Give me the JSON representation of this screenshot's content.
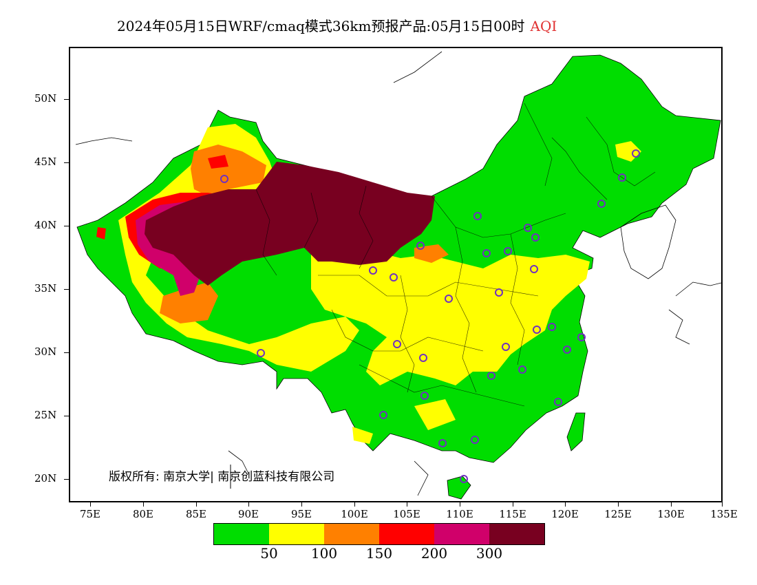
{
  "title": {
    "text": "2024年05月15日WRF/cmaq模式36km预报产品:05月15日00时",
    "variable": "AQI",
    "variable_color": "#e03030"
  },
  "axes": {
    "lat_labels": [
      "50N",
      "45N",
      "40N",
      "35N",
      "30N",
      "25N",
      "20N"
    ],
    "lon_labels": [
      "75E",
      "80E",
      "85E",
      "90E",
      "95E",
      "100E",
      "105E",
      "110E",
      "115E",
      "120E",
      "125E",
      "130E",
      "135E"
    ]
  },
  "legend": {
    "colors": [
      "#00dd00",
      "#ffff00",
      "#ff8000",
      "#ff0000",
      "#d0006a",
      "#780020"
    ],
    "color_names": [
      "good",
      "moderate",
      "unhealthy-sensitive",
      "unhealthy",
      "very-unhealthy",
      "hazardous"
    ],
    "labels": [
      "50",
      "100",
      "150",
      "200",
      "300"
    ]
  },
  "copyright": "版权所有: 南京大学| 南京创蓝科技有限公司",
  "stations_color": "#7030c0"
}
